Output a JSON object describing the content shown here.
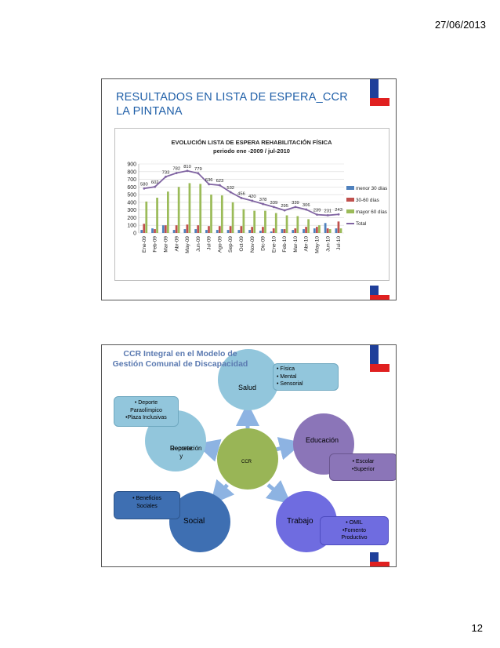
{
  "header": {
    "date": "27/06/2013"
  },
  "footer": {
    "page_number": "12"
  },
  "slide1": {
    "title_line1": "RESULTADOS EN LISTA DE ESPERA_CCR",
    "title_line2": "LA PINTANA"
  },
  "chart_data": {
    "type": "bar",
    "title": "EVOLUCIÓN LISTA DE ESPERA REHABILITACIÓN FÍSICA",
    "subtitle": "periodo ene -2009 / jul-2010",
    "categories": [
      "Ene-09",
      "Feb-09",
      "Mar-09",
      "Abr-09",
      "May-09",
      "Jun-09",
      "Jul-09",
      "Ago-09",
      "Sep-09",
      "Oct-09",
      "Nov-09",
      "Dic-09",
      "Ene-10",
      "Feb-10",
      "Mar-10",
      "Abr-10",
      "May-10",
      "Jun-10",
      "Jul-10"
    ],
    "ylim": [
      0,
      900
    ],
    "yticks": [
      "0",
      "100",
      "200",
      "300",
      "400",
      "500",
      "600",
      "700",
      "800",
      "900"
    ],
    "grid": true,
    "legend": "right",
    "series": [
      {
        "name": "menor 30 días",
        "kind": "bar",
        "color": "#4f81bd",
        "values": [
          40,
          60,
          100,
          40,
          50,
          50,
          40,
          40,
          40,
          40,
          40,
          30,
          20,
          50,
          40,
          50,
          60,
          130,
          60
        ]
      },
      {
        "name": "30-60 días",
        "kind": "bar",
        "color": "#c0504d",
        "values": [
          120,
          50,
          100,
          100,
          110,
          100,
          90,
          90,
          90,
          90,
          80,
          80,
          60,
          50,
          60,
          80,
          80,
          60,
          150
        ]
      },
      {
        "name": "mayor 60 días",
        "kind": "bar",
        "color": "#9bbb59",
        "values": [
          410,
          460,
          540,
          600,
          650,
          640,
          500,
          490,
          400,
          310,
          290,
          290,
          260,
          230,
          220,
          180,
          100,
          50,
          60
        ]
      },
      {
        "name": "Total",
        "kind": "line",
        "color": "#8064a2",
        "values": [
          580,
          602,
          733,
          782,
          810,
          779,
          636,
          623,
          532,
          456,
          420,
          378,
          339,
          295,
          339,
          306,
          239,
          231,
          243
        ]
      }
    ],
    "data_labels": [
      "580",
      "602",
      "733",
      "782",
      "810",
      "779",
      "636",
      "623",
      "532",
      "456",
      "420",
      "378",
      "339",
      "295",
      "339",
      "306",
      "239",
      "231",
      "243"
    ]
  },
  "slide2": {
    "title_line1": "CCR Integral en el Modelo de",
    "title_line2": "Gestión Comunal de Discapacidad",
    "center": "CCR",
    "nodes": {
      "salud": "Salud",
      "educacion": "Educación",
      "deporte_line1": "Deporte y",
      "deporte_line2": "Recreación",
      "social": "Social",
      "trabajo": "Trabajo"
    },
    "callouts": {
      "salud": [
        "• Física",
        "• Mental",
        "• Sensorial"
      ],
      "deporte": [
        "• Deporte",
        "Paraolímpico",
        "•Plaza Inclusivas"
      ],
      "educacion": [
        "• Escolar",
        "•Superior"
      ],
      "social": [
        "• Beneficios",
        "Sociales"
      ],
      "trabajo": [
        "• OMIL",
        "•Fomento",
        "Productivo"
      ]
    },
    "colors": {
      "salud": "#92c6dc",
      "educacion": "#8b75b8",
      "ccr": "#99b556",
      "deporte": "#92c6dc",
      "social": "#3e6fb2",
      "trabajo": "#6f6ce0",
      "arrow": "#8db3e2"
    }
  }
}
